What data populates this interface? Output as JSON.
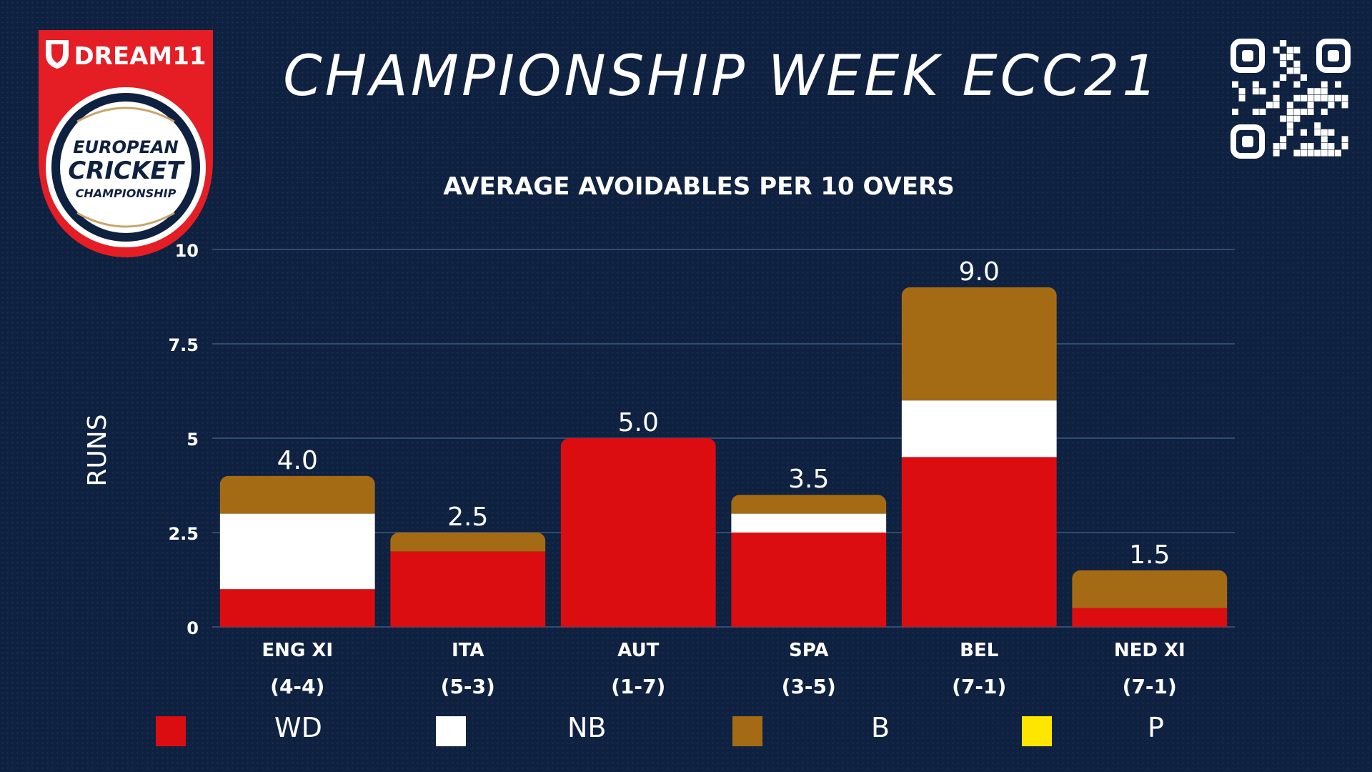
{
  "header": {
    "title": "CHAMPIONSHIP WEEK ECC21",
    "logo_brand": "DREAM11",
    "logo_line1": "EUROPEAN",
    "logo_line2": "CRICKET",
    "logo_line3": "CHAMPIONSHIP",
    "qr_icon": "qr-code-icon"
  },
  "colors": {
    "background": "#0f2140",
    "wd": "#dc0d10",
    "nb": "#ffffff",
    "b": "#a56b14",
    "p": "#ffe600",
    "gridline": "#3a5a82",
    "logo_red": "#e51d25"
  },
  "chart_data": {
    "type": "bar",
    "stacked": true,
    "title": "AVERAGE AVOIDABLES PER 10 OVERS",
    "xlabel": "",
    "ylabel": "RUNS",
    "ylim": [
      0,
      10
    ],
    "yticks": [
      "0",
      "2.5",
      "5",
      "7.5",
      "10"
    ],
    "ytick_values": [
      0,
      2.5,
      5,
      7.5,
      10
    ],
    "grid": true,
    "legend_position": "bottom",
    "categories": [
      "ENG XI",
      "ITA",
      "AUT",
      "SPA",
      "BEL",
      "NED XI"
    ],
    "records": [
      "(4-4)",
      "(5-3)",
      "(1-7)",
      "(3-5)",
      "(7-1)",
      "(7-1)"
    ],
    "series": [
      {
        "name": "WD",
        "values": [
          1.0,
          2.0,
          5.0,
          2.5,
          4.5,
          0.5
        ]
      },
      {
        "name": "NB",
        "values": [
          2.0,
          0.0,
          0.0,
          0.5,
          1.5,
          0.0
        ]
      },
      {
        "name": "B",
        "values": [
          1.0,
          0.5,
          0.0,
          0.5,
          3.0,
          1.0
        ]
      },
      {
        "name": "P",
        "values": [
          0,
          0,
          0,
          0,
          0,
          0
        ]
      }
    ],
    "totals": [
      "4.0",
      "2.5",
      "5.0",
      "3.5",
      "9.0",
      "1.5"
    ]
  },
  "legend": [
    {
      "label": "WD",
      "color": "#dc0d10"
    },
    {
      "label": "NB",
      "color": "#ffffff"
    },
    {
      "label": "B",
      "color": "#a56b14"
    },
    {
      "label": "P",
      "color": "#ffe600"
    }
  ]
}
